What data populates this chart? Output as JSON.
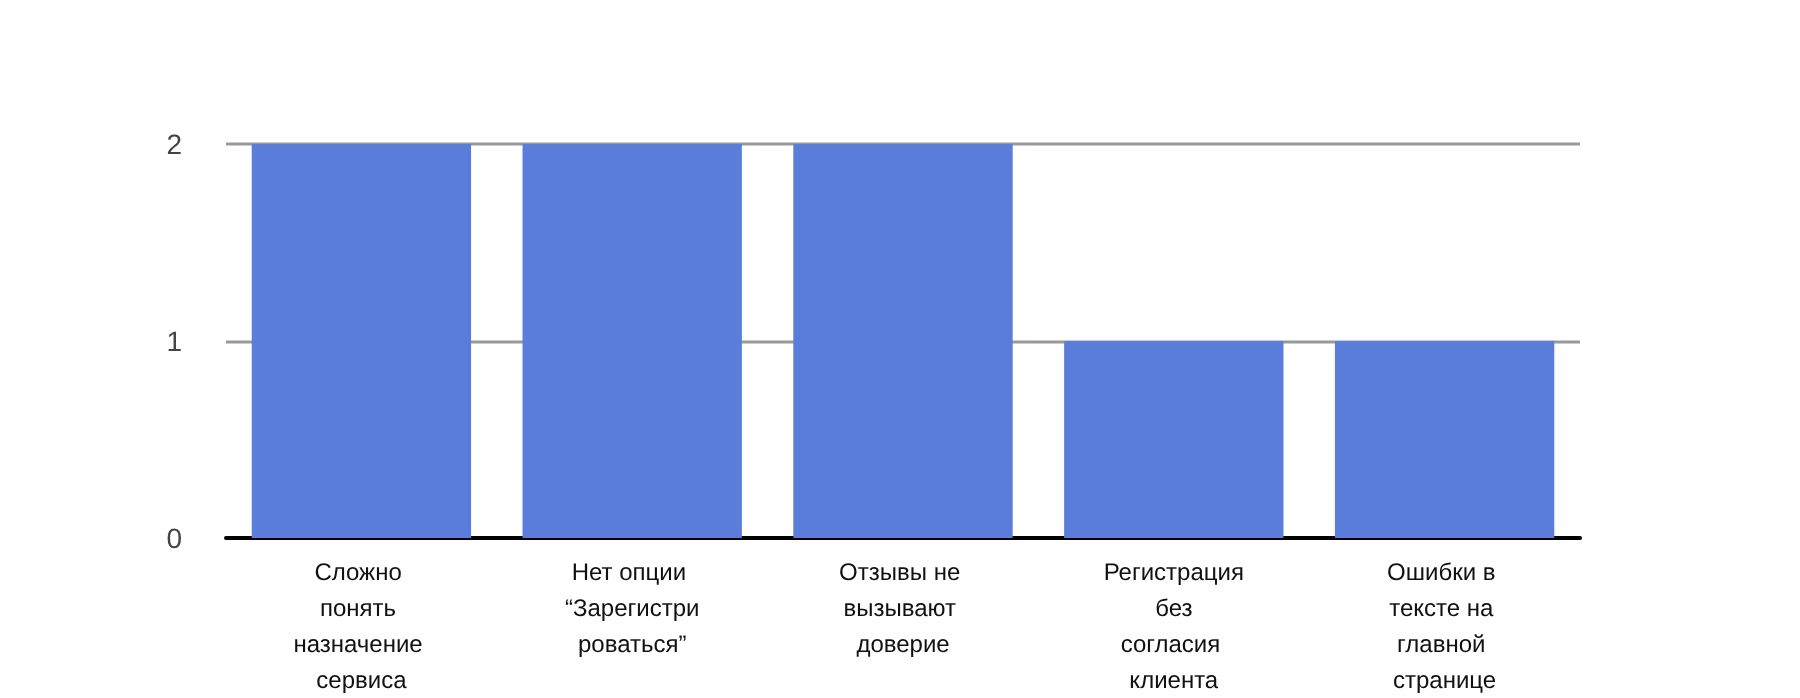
{
  "chart_data": {
    "type": "bar",
    "categories": [
      "Сложно понять назначение сервиса",
      "Нет опции “Зарегистрироваться”",
      "Отзывы не вызывают доверие",
      "Регистрация без согласия клиента",
      "Ошибки в тексте на главной странице"
    ],
    "values": [
      2,
      2,
      2,
      1,
      1
    ],
    "color": "#5a7ddb",
    "ylim": [
      0,
      2
    ],
    "yticks": [
      0,
      1,
      2
    ],
    "grid": "y"
  }
}
